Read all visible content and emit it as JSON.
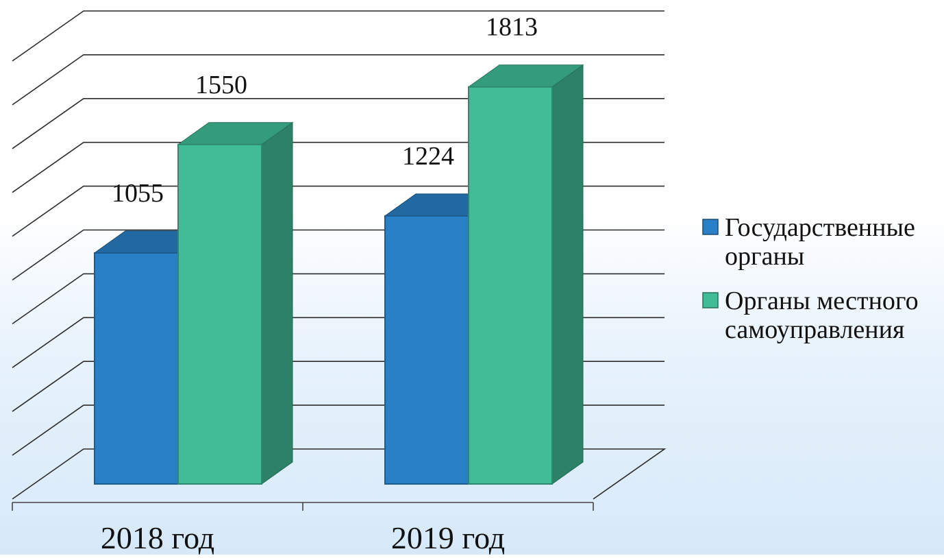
{
  "chart_data": {
    "type": "bar",
    "style": "3d-clustered-column",
    "categories": [
      "2018 год",
      "2019 год"
    ],
    "series": [
      {
        "name": "Государственные органы",
        "name_lines": [
          "Государственные",
          "органы"
        ],
        "values": [
          1055,
          1224
        ],
        "color": "#2a80c6"
      },
      {
        "name": "Органы местного самоуправления",
        "name_lines": [
          "Органы местного",
          "самоуправления"
        ],
        "values": [
          1550,
          1813
        ],
        "color": "#40bd96"
      }
    ],
    "data_labels": true,
    "ylim": [
      0,
      2000
    ],
    "grid_step": 200,
    "grid": true,
    "legend_position": "right",
    "title": "",
    "xlabel": "",
    "ylabel": ""
  }
}
